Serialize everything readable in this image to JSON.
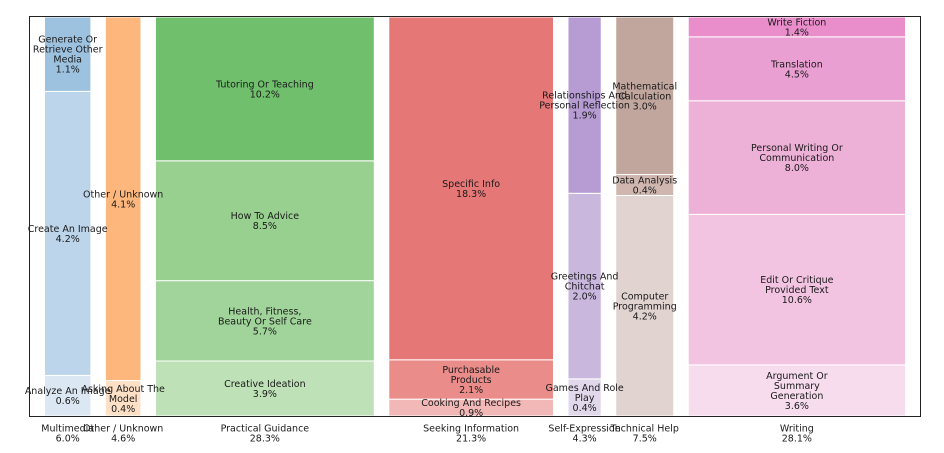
{
  "chart_data": {
    "type": "bar",
    "stacked": true,
    "normalized_columns": true,
    "x_axis": {
      "ticks": false
    },
    "y_axis": {
      "visible": false
    },
    "grid": false,
    "legend": "none",
    "categories": [
      {
        "name": "Multimedia",
        "total": "6.0%",
        "value": 6.0,
        "segments": [
          {
            "label": "Analyze An Image",
            "pct": "0.6%",
            "value": 0.6,
            "color": "#dbe7f3"
          },
          {
            "label": "Create An Image",
            "pct": "4.2%",
            "value": 4.2,
            "color": "#bcd5ea"
          },
          {
            "label": "Generate Or Retrieve Other Media",
            "pct": "1.1%",
            "value": 1.1,
            "color": "#9dc2e0"
          }
        ]
      },
      {
        "name": "Other / Unknown",
        "total": "4.6%",
        "value": 4.6,
        "segments": [
          {
            "label": "Asking About The Model",
            "pct": "0.4%",
            "value": 0.4,
            "color": "#fde0c5"
          },
          {
            "label": "Other / Unknown",
            "pct": "4.1%",
            "value": 4.1,
            "color": "#fdb77c"
          }
        ]
      },
      {
        "name": "Practical Guidance",
        "total": "28.3%",
        "value": 28.3,
        "segments": [
          {
            "label": "Creative Ideation",
            "pct": "3.9%",
            "value": 3.9,
            "color": "#bfe1b8"
          },
          {
            "label": "Health, Fitness, Beauty Or Self Care",
            "pct": "5.7%",
            "value": 5.7,
            "color": "#a1d49a"
          },
          {
            "label": "How To Advice",
            "pct": "8.5%",
            "value": 8.5,
            "color": "#98d08f"
          },
          {
            "label": "Tutoring Or Teaching",
            "pct": "10.2%",
            "value": 10.2,
            "color": "#70bf6d"
          }
        ]
      },
      {
        "name": "Seeking Information",
        "total": "21.3%",
        "value": 21.3,
        "segments": [
          {
            "label": "Cooking And Recipes",
            "pct": "0.9%",
            "value": 0.9,
            "color": "#f2b8b8"
          },
          {
            "label": "Purchasable Products",
            "pct": "2.1%",
            "value": 2.1,
            "color": "#ea8c89"
          },
          {
            "label": "Specific Info",
            "pct": "18.3%",
            "value": 18.3,
            "color": "#e57776"
          }
        ]
      },
      {
        "name": "Self-Expression",
        "total": "4.3%",
        "value": 4.3,
        "segments": [
          {
            "label": "Games And Role Play",
            "pct": "0.4%",
            "value": 0.4,
            "color": "#e2d8ec"
          },
          {
            "label": "Greetings And Chitchat",
            "pct": "2.0%",
            "value": 2.0,
            "color": "#c9b7de"
          },
          {
            "label": "Relationships And Personal Reflection",
            "pct": "1.9%",
            "value": 1.9,
            "color": "#b69cd3"
          }
        ]
      },
      {
        "name": "Technical Help",
        "total": "7.5%",
        "value": 7.5,
        "segments": [
          {
            "label": "Computer Programming",
            "pct": "4.2%",
            "value": 4.2,
            "color": "#e0d3d0"
          },
          {
            "label": "Data Analysis",
            "pct": "0.4%",
            "value": 0.4,
            "color": "#cfb7b0"
          },
          {
            "label": "Mathematical Calculation",
            "pct": "3.0%",
            "value": 3.0,
            "color": "#c1a69e"
          }
        ]
      },
      {
        "name": "Writing",
        "total": "28.1%",
        "value": 28.1,
        "segments": [
          {
            "label": "Argument Or Summary Generation",
            "pct": "3.6%",
            "value": 3.6,
            "color": "#f7dcee"
          },
          {
            "label": "Edit Or Critique Provided Text",
            "pct": "10.6%",
            "value": 10.6,
            "color": "#f2c4e1"
          },
          {
            "label": "Personal Writing Or Communication",
            "pct": "8.0%",
            "value": 8.0,
            "color": "#edb0d7"
          },
          {
            "label": "Translation",
            "pct": "4.5%",
            "value": 4.5,
            "color": "#ea9fd2"
          },
          {
            "label": "Write Fiction",
            "pct": "1.4%",
            "value": 1.4,
            "color": "#e98ecb"
          }
        ]
      }
    ]
  }
}
